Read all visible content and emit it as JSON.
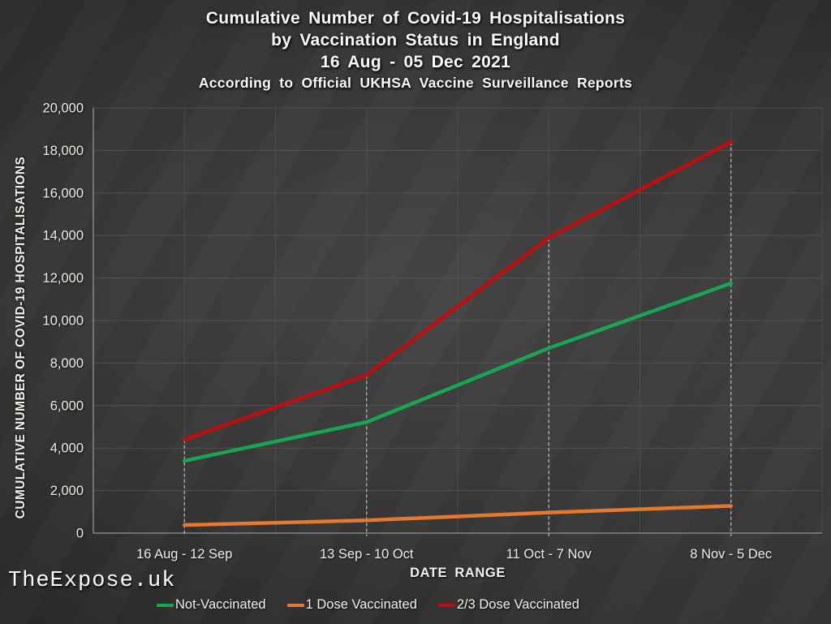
{
  "header": {
    "line1": "Cumulative Number of Covid-19 Hospitalisations",
    "line2": "by Vaccination Status in England",
    "line3": "16 Aug - 05 Dec 2021",
    "subtitle": "According to Official UKHSA Vaccine Surveillance Reports"
  },
  "watermark": "TheExpose.uk",
  "colors": {
    "background": "#343434",
    "text": "#f2ece3",
    "gridline": "#5e5e5e",
    "axis": "#939393",
    "drop_line": "#d2d2d2"
  },
  "chart_data": {
    "type": "line",
    "title": "Cumulative Number of Covid-19 Hospitalisations by Vaccination Status in England 16 Aug - 05 Dec 2021",
    "subtitle": "According to Official UKHSA Vaccine Surveillance Reports",
    "categories": [
      "16 Aug - 12 Sep",
      "13 Sep - 10 Oct",
      "11 Oct - 7 Nov",
      "8 Nov - 5 Dec"
    ],
    "series": [
      {
        "name": "Not-Vaccinated",
        "color": "#17a656",
        "values": [
          3400,
          5220,
          8700,
          11750
        ]
      },
      {
        "name": "1 Dose Vaccinated",
        "color": "#e5792d",
        "values": [
          380,
          600,
          970,
          1280
        ]
      },
      {
        "name": "2/3 Dose Vaccinated",
        "color": "#c00d0d",
        "values": [
          4400,
          7430,
          13890,
          18400
        ]
      }
    ],
    "xlabel": "DATE RANGE",
    "ylabel": "CUMULATIVE NUMBER OF COVID-19 HOSPITALISATIONS",
    "ylim": [
      0,
      20000
    ],
    "ytick_step": 2000,
    "ytick_labels": [
      "0",
      "2,000",
      "4,000",
      "6,000",
      "8,000",
      "10,000",
      "12,000",
      "14,000",
      "16,000",
      "18,000",
      "20,000"
    ],
    "legend_position": "bottom",
    "grid": true,
    "drop_lines": true
  }
}
